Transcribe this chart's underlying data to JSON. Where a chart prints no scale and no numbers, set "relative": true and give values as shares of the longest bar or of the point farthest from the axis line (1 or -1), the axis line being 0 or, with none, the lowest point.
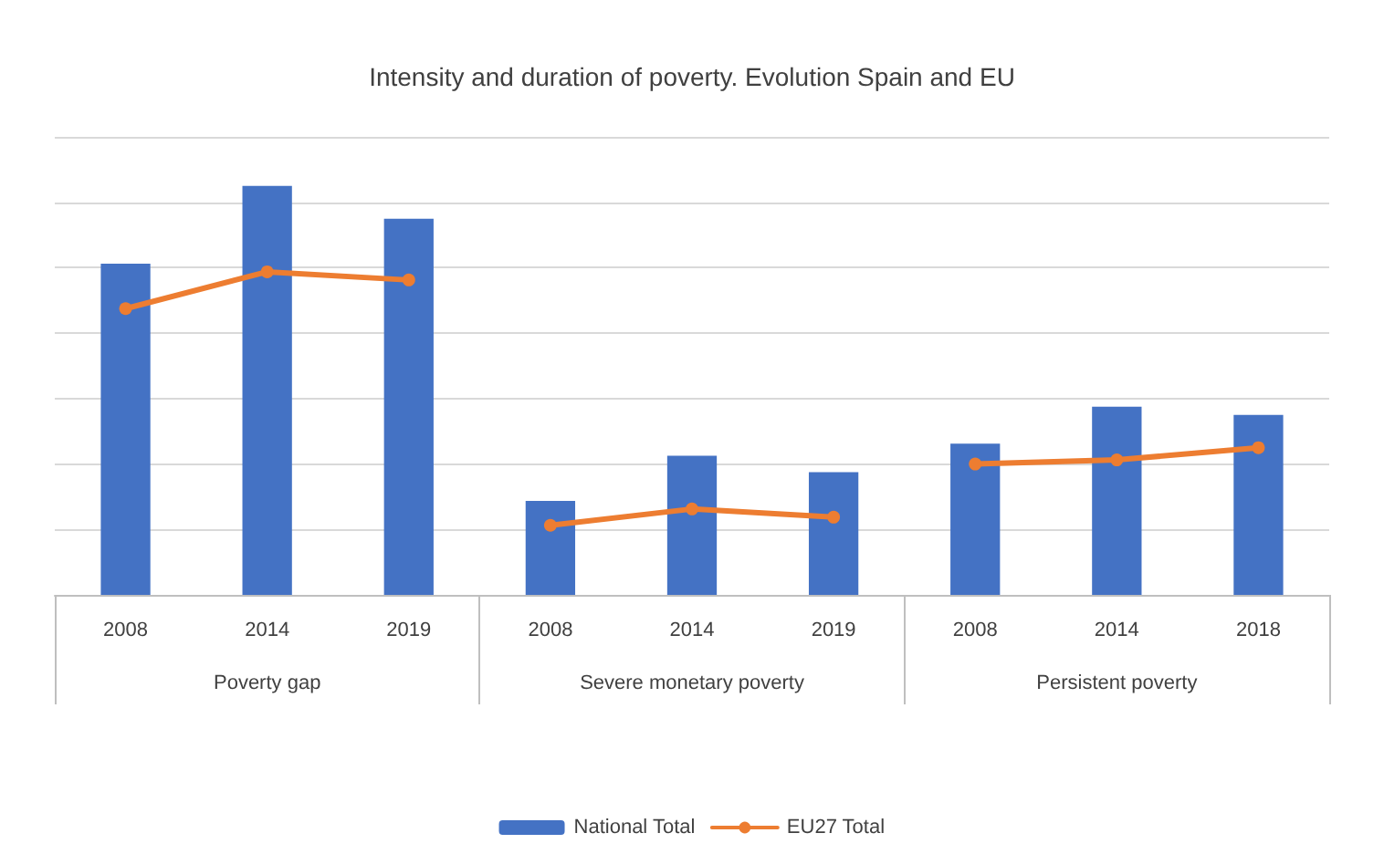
{
  "chart_data": {
    "type": "bar",
    "title": "Intensity and duration of poverty. Evolution Spain and EU",
    "relative": true,
    "grid": "y",
    "legend": "bottom",
    "marker": "circle",
    "categories": [
      "2008",
      "2014",
      "2019",
      "2008",
      "2014",
      "2019",
      "2008",
      "2014",
      "2018"
    ],
    "annotations": [
      "Poverty gap",
      "Severe monetary poverty",
      "Persistent poverty"
    ],
    "series": [
      {
        "name": "National Total",
        "color": "#4472c4",
        "values": [
          0.81,
          1,
          0.92,
          0.23,
          0.34,
          0.3,
          0.37,
          0.46,
          0.44
        ]
      },
      {
        "name": "EU27 Total",
        "type": "line",
        "color": "#ed7d31",
        "values": [
          0.7,
          0.79,
          0.77,
          0.17,
          0.21,
          0.19,
          0.32,
          0.33,
          0.36
        ]
      }
    ]
  }
}
